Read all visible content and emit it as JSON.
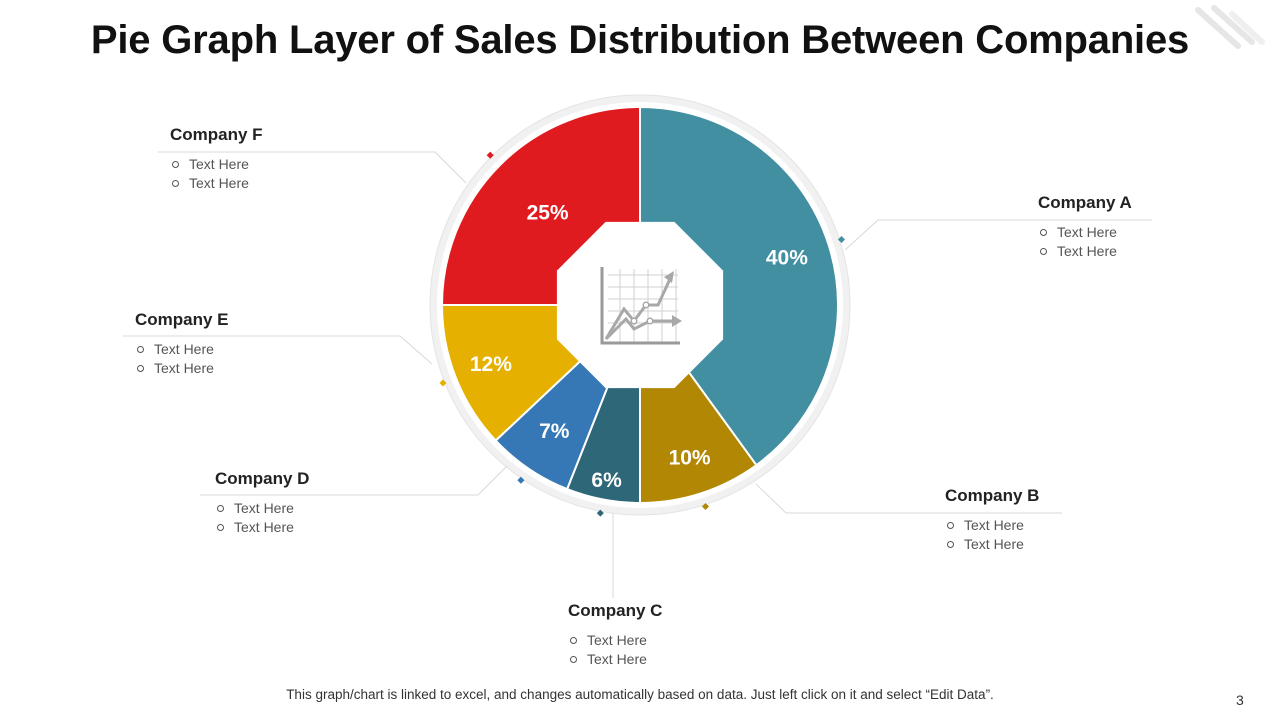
{
  "title": "Pie Graph Layer of Sales Distribution Between Companies",
  "footnote": "This graph/chart is linked to excel, and changes automatically based on data. Just left click on it and select “Edit Data”.",
  "page_number": "3",
  "center_icon": "line-chart-icon",
  "chart_data": {
    "type": "pie",
    "title": "Pie Graph Layer of Sales Distribution Between Companies",
    "slices": [
      {
        "key": "a",
        "name": "Company A",
        "value": 40,
        "label": "40%",
        "color": "#428FA2"
      },
      {
        "key": "b",
        "name": "Company B",
        "value": 10,
        "label": "10%",
        "color": "#B18704"
      },
      {
        "key": "c",
        "name": "Company C",
        "value": 6,
        "label": "6%",
        "color": "#2E6878"
      },
      {
        "key": "d",
        "name": "Company D",
        "value": 7,
        "label": "7%",
        "color": "#3578B5"
      },
      {
        "key": "e",
        "name": "Company E",
        "value": 12,
        "label": "12%",
        "color": "#E5B000"
      },
      {
        "key": "f",
        "name": "Company F",
        "value": 25,
        "label": "25%",
        "color": "#E01B1F"
      }
    ]
  },
  "callouts": {
    "a": {
      "name": "Company A",
      "items": [
        "Text Here",
        "Text Here"
      ]
    },
    "b": {
      "name": "Company B",
      "items": [
        "Text Here",
        "Text Here"
      ]
    },
    "c": {
      "name": "Company C",
      "items": [
        "Text Here",
        "Text Here"
      ]
    },
    "d": {
      "name": "Company D",
      "items": [
        "Text Here",
        "Text Here"
      ]
    },
    "e": {
      "name": "Company E",
      "items": [
        "Text Here",
        "Text Here"
      ]
    },
    "f": {
      "name": "Company F",
      "items": [
        "Text Here",
        "Text Here"
      ]
    }
  }
}
